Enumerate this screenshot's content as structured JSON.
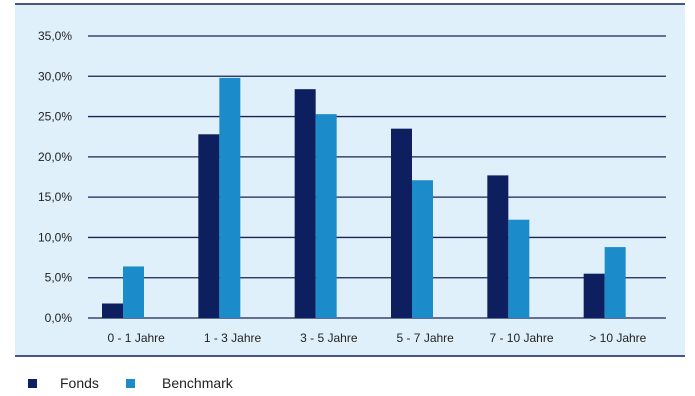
{
  "colors": {
    "background": "#dff0fa",
    "frame": "#0f2060",
    "gridline": "#1a2258",
    "fonds": "#0d1f5e",
    "benchmark": "#1b8cc9",
    "text": "#222222"
  },
  "chart_data": {
    "type": "bar",
    "title": "",
    "xlabel": "",
    "ylabel": "",
    "ylim": [
      0,
      35
    ],
    "yticks": [
      0,
      5,
      10,
      15,
      20,
      25,
      30,
      35
    ],
    "ytick_labels": [
      "0,0%",
      "5,0%",
      "10,0%",
      "15,0%",
      "20,0%",
      "25,0%",
      "30,0%",
      "35,0%"
    ],
    "grid": true,
    "legend_position": "bottom-left",
    "categories": [
      "0 - 1 Jahre",
      "1 - 3 Jahre",
      "3 - 5 Jahre",
      "5 - 7 Jahre",
      "7 - 10 Jahre",
      "> 10 Jahre"
    ],
    "series": [
      {
        "name": "Fonds",
        "values": [
          1.8,
          22.8,
          28.4,
          23.5,
          17.7,
          5.5
        ]
      },
      {
        "name": "Benchmark",
        "values": [
          6.4,
          29.8,
          25.3,
          17.1,
          12.2,
          8.8
        ]
      }
    ]
  }
}
